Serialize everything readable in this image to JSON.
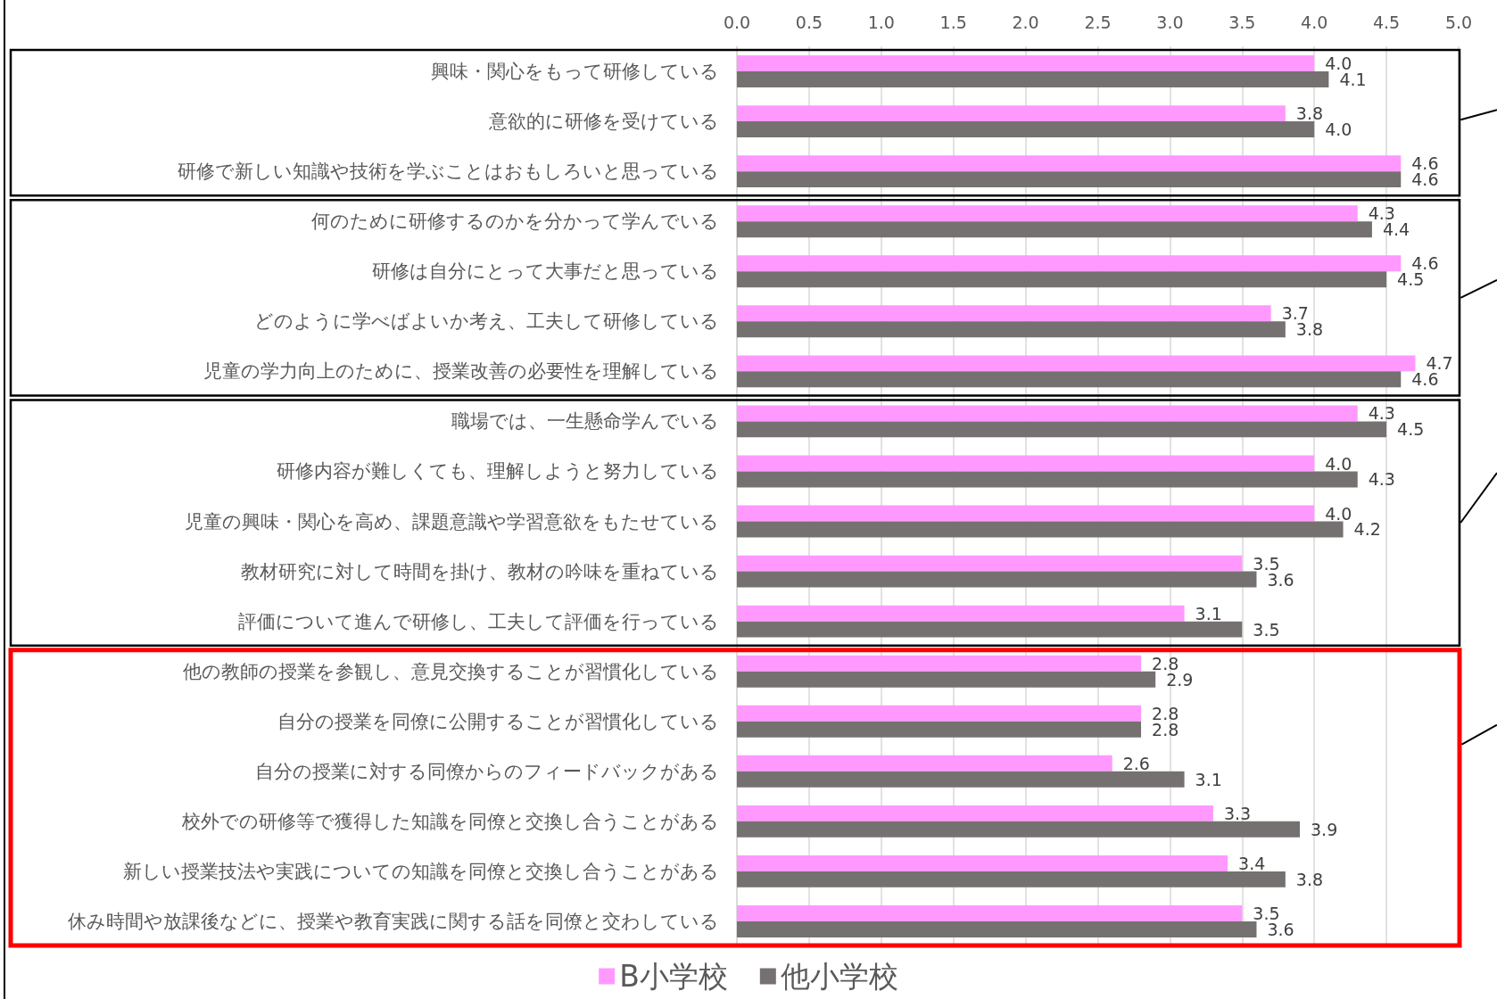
{
  "chart_data": {
    "type": "bar",
    "orientation": "horizontal",
    "categories": [
      "興味・関心をもって研修している",
      "意欲的に研修を受けている",
      "研修で新しい知識や技術を学ぶことはおもしろいと思っている",
      "何のために研修するのかを分かって学んでいる",
      "研修は自分にとって大事だと思っている",
      "どのように学べばよいか考え、工夫して研修している",
      "児童の学力向上のために、授業改善の必要性を理解している",
      "職場では、一生懸命学んでいる",
      "研修内容が難しくても、理解しようと努力している",
      "児童の興味・関心を高め、課題意識や学習意欲をもたせている",
      "教材研究に対して時間を掛け、教材の吟味を重ねている",
      "評価について進んで研修し、工夫して評価を行っている",
      "他の教師の授業を参観し、意見交換することが習慣化している",
      "自分の授業を同僚に公開することが習慣化している",
      "自分の授業に対する同僚からのフィードバックがある",
      "校外での研修等で獲得した知識を同僚と交換し合うことがある",
      "新しい授業技法や実践についての知識を同僚と交換し合うことがある",
      "休み時間や放課後などに、授業や教育実践に関する話を同僚と交わしている"
    ],
    "series": [
      {
        "name": "B小学校",
        "color": "#ff99ff",
        "values": [
          4.0,
          3.8,
          4.6,
          4.3,
          4.6,
          3.7,
          4.7,
          4.3,
          4.0,
          4.0,
          3.5,
          3.1,
          2.8,
          2.8,
          2.6,
          3.3,
          3.4,
          3.5
        ],
        "value_labels": [
          "4.0",
          "3.8",
          "4.6",
          "4.3",
          "4.6",
          "3.7",
          "4.7",
          "4.3",
          "4.0",
          "4.0",
          "3.5",
          "3.1",
          "2.8",
          "2.8",
          "2.6",
          "3.3",
          "3.4",
          "3.5"
        ]
      },
      {
        "name": "他小学校",
        "color": "#767171",
        "values": [
          4.1,
          4.0,
          4.6,
          4.4,
          4.5,
          3.8,
          4.6,
          4.5,
          4.3,
          4.2,
          3.6,
          3.5,
          2.9,
          2.8,
          3.1,
          3.9,
          3.8,
          3.6
        ],
        "value_labels": [
          "4.1",
          "4.0",
          "4.6",
          "4.4",
          "4.5",
          "3.8",
          "4.6",
          "4.5",
          "4.3",
          "4.2",
          "3.6",
          "3.5",
          "2.9",
          "2.8",
          "3.1",
          "3.9",
          "3.8",
          "3.6"
        ]
      }
    ],
    "xlim": [
      0,
      5
    ],
    "xticks": [
      {
        "value": 0,
        "label": "0.0"
      },
      {
        "value": 0.5,
        "label": "0.5"
      },
      {
        "value": 1,
        "label": "1.0"
      },
      {
        "value": 1.5,
        "label": "1.5"
      },
      {
        "value": 2,
        "label": "2.0"
      },
      {
        "value": 2.5,
        "label": "2.5"
      },
      {
        "value": 3,
        "label": "3.0"
      },
      {
        "value": 3.5,
        "label": "3.5"
      },
      {
        "value": 4,
        "label": "4.0"
      },
      {
        "value": 4.5,
        "label": "4.5"
      },
      {
        "value": 5,
        "label": "5.0"
      }
    ],
    "grid": "x",
    "legend": "bottom"
  }
}
